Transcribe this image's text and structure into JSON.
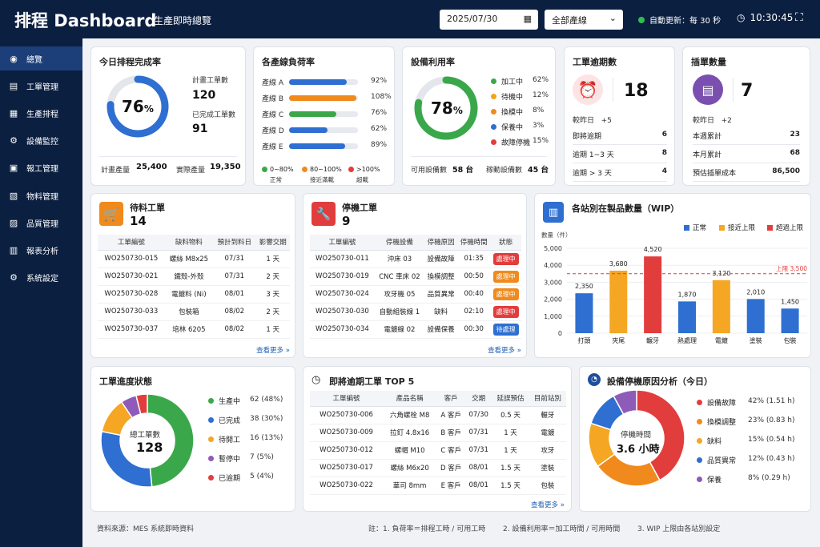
{
  "header": {
    "title": "排程 Dashboard",
    "subtitle": "生產即時總覽",
    "date": "2025/07/30",
    "line_select": "全部產線",
    "auto_refresh": "自動更新：每 30 秒",
    "time": "10:30:45"
  },
  "sidebar": {
    "items": [
      {
        "label": "總覽",
        "icon": "dashboard-icon",
        "glyph": "◉"
      },
      {
        "label": "工單管理",
        "icon": "document-icon",
        "glyph": "▤"
      },
      {
        "label": "生產排程",
        "icon": "calendar-icon",
        "glyph": "▦"
      },
      {
        "label": "設備監控",
        "icon": "equipment-icon",
        "glyph": "⚙"
      },
      {
        "label": "報工管理",
        "icon": "report-icon",
        "glyph": "▣"
      },
      {
        "label": "物料管理",
        "icon": "material-icon",
        "glyph": "▧"
      },
      {
        "label": "品質管理",
        "icon": "quality-icon",
        "glyph": "▨"
      },
      {
        "label": "報表分析",
        "icon": "chart-icon",
        "glyph": "▥"
      },
      {
        "label": "系統設定",
        "icon": "settings-icon",
        "glyph": "⚙"
      }
    ]
  },
  "completion": {
    "title": "今日排程完成率",
    "percent": "76",
    "percent_sign": "%",
    "value": 0.76,
    "planned_label": "計畫工單數",
    "planned": "120",
    "done_label": "已完成工單數",
    "done": "91",
    "plan_output_label": "計畫產量",
    "plan_output": "25,400",
    "actual_output_label": "實際產量",
    "actual_output": "19,350"
  },
  "line_load": {
    "title": "各產線負荷率",
    "lines": [
      {
        "name": "產線 A",
        "pct": "92%",
        "value": 92,
        "color": "#2e6fd1"
      },
      {
        "name": "產線 B",
        "pct": "108%",
        "value": 108,
        "color": "#f08a1c"
      },
      {
        "name": "產線 C",
        "pct": "76%",
        "value": 76,
        "color": "#3aa84a"
      },
      {
        "name": "產線 D",
        "pct": "62%",
        "value": 62,
        "color": "#2e6fd1"
      },
      {
        "name": "產線 E",
        "pct": "89%",
        "value": 89,
        "color": "#2e6fd1"
      }
    ],
    "legend": [
      {
        "range": "0~80%",
        "label": "正常",
        "color": "#3aa84a"
      },
      {
        "range": "80~100%",
        "label": "接近滿載",
        "color": "#f08a1c"
      },
      {
        "range": ">100%",
        "label": "超載",
        "color": "#e23d3d"
      }
    ]
  },
  "utilization": {
    "title": "設備利用率",
    "percent": "78",
    "percent_sign": "%",
    "value": 0.78,
    "states": [
      {
        "label": "加工中",
        "pct": "62%",
        "color": "#3aa84a"
      },
      {
        "label": "待機中",
        "pct": "12%",
        "color": "#f0a51c"
      },
      {
        "label": "換模中",
        "pct": "8%",
        "color": "#f08a1c"
      },
      {
        "label": "保養中",
        "pct": "3%",
        "color": "#2e6fd1"
      },
      {
        "label": "故障停機",
        "pct": "15%",
        "color": "#e23d3d"
      }
    ],
    "available_label": "可用設備數",
    "available": "58 台",
    "running_label": "稼動設備數",
    "running": "45 台"
  },
  "overdue": {
    "title": "工單逾期數",
    "count": "18",
    "compare_label": "較昨日",
    "compare": "+5",
    "rows": [
      {
        "label": "即將逾期",
        "value": "6"
      },
      {
        "label": "逾期 1~3 天",
        "value": "8"
      },
      {
        "label": "逾期 > 3 天",
        "value": "4"
      }
    ]
  },
  "rush": {
    "title": "插單數量",
    "count": "7",
    "compare_label": "較昨日",
    "compare": "+2",
    "rows": [
      {
        "label": "本週累計",
        "value": "23"
      },
      {
        "label": "本月累計",
        "value": "68"
      },
      {
        "label": "預估插單成本",
        "value": "86,500"
      }
    ]
  },
  "material_wait": {
    "title": "待料工單",
    "count": "14",
    "headers": [
      "工單編號",
      "缺料物料",
      "預計到料日",
      "影響交期"
    ],
    "rows": [
      [
        "WO250730-015",
        "螺絲 M8x25",
        "07/31",
        "1 天"
      ],
      [
        "WO250730-021",
        "鐵殼-外殼",
        "07/31",
        "2 天"
      ],
      [
        "WO250730-028",
        "電鍍料 (Ni)",
        "08/01",
        "3 天"
      ],
      [
        "WO250730-033",
        "包裝箱",
        "08/02",
        "2 天"
      ],
      [
        "WO250730-037",
        "培林 6205",
        "08/02",
        "1 天"
      ]
    ],
    "more": "查看更多 »"
  },
  "stopped": {
    "title": "停機工單",
    "count": "9",
    "headers": [
      "工單編號",
      "停機設備",
      "停機原因",
      "停機時間",
      "狀態"
    ],
    "rows": [
      [
        "WO250730-011",
        "沖床 03",
        "設備故障",
        "01:35",
        "處理中",
        "#e23d3d"
      ],
      [
        "WO250730-019",
        "CNC 車床 02",
        "換模調整",
        "00:50",
        "處理中",
        "#f08a1c"
      ],
      [
        "WO250730-024",
        "攻牙機 05",
        "品質異常",
        "00:40",
        "處理中",
        "#f08a1c"
      ],
      [
        "WO250730-030",
        "自動組裝線 1",
        "缺料",
        "02:10",
        "處理中",
        "#e23d3d"
      ],
      [
        "WO250730-034",
        "電鍍線 02",
        "設備保養",
        "00:30",
        "待處理",
        "#2e6fd1"
      ]
    ],
    "more": "查看更多 »"
  },
  "wip": {
    "title": "各站別在製品數量（WIP）",
    "legend": [
      {
        "label": "正常",
        "color": "#2e6fd1"
      },
      {
        "label": "接近上限",
        "color": "#f5a623"
      },
      {
        "label": "超過上限",
        "color": "#e23d3d"
      }
    ],
    "limit_label": "上限 3,500"
  },
  "chart_data": {
    "type": "bar",
    "ylabel": "數量（件）",
    "ylim": [
      0,
      5000
    ],
    "yticks": [
      "0",
      "1,000",
      "2,000",
      "3,000",
      "4,000",
      "5,000"
    ],
    "categories": [
      "打頭",
      "夾尾",
      "輾牙",
      "熱處理",
      "電鍍",
      "塗裝",
      "包裝"
    ],
    "values": [
      2350,
      3680,
      4520,
      1870,
      3120,
      2010,
      1450
    ],
    "value_labels": [
      "2,350",
      "3,680",
      "4,520",
      "1,870",
      "3,120",
      "2,010",
      "1,450"
    ],
    "colors": [
      "#2e6fd1",
      "#f5a623",
      "#e23d3d",
      "#2e6fd1",
      "#f5a623",
      "#2e6fd1",
      "#2e6fd1"
    ],
    "limit": 3500
  },
  "progress": {
    "title": "工單進度狀態",
    "center_label": "總工單數",
    "total": "128",
    "states": [
      {
        "label": "生產中",
        "value": "62 (48%)",
        "n": 62,
        "color": "#3aa84a"
      },
      {
        "label": "已完成",
        "value": "38 (30%)",
        "n": 38,
        "color": "#2e6fd1"
      },
      {
        "label": "待開工",
        "value": "16 (13%)",
        "n": 16,
        "color": "#f5a623"
      },
      {
        "label": "暫停中",
        "value": "7 (5%)",
        "n": 7,
        "color": "#8e5bb8"
      },
      {
        "label": "已逾期",
        "value": "5 (4%)",
        "n": 5,
        "color": "#e23d3d"
      }
    ]
  },
  "top5": {
    "title": "即將逾期工單 TOP 5",
    "headers": [
      "工單編號",
      "產品名稱",
      "客戶",
      "交期",
      "延誤預估",
      "目前站別"
    ],
    "rows": [
      [
        "WO250730-006",
        "六角螺栓 M8",
        "A 客戶",
        "07/30",
        "0.5 天",
        "輾牙"
      ],
      [
        "WO250730-009",
        "拉釘 4.8x16",
        "B 客戶",
        "07/31",
        "1 天",
        "電鍍"
      ],
      [
        "WO250730-012",
        "螺帽 M10",
        "C 客戶",
        "07/31",
        "1 天",
        "攻牙"
      ],
      [
        "WO250730-017",
        "螺絲 M6x20",
        "D 客戶",
        "08/01",
        "1.5 天",
        "塗裝"
      ],
      [
        "WO250730-022",
        "華司 8mm",
        "E 客戶",
        "08/01",
        "1.5 天",
        "包裝"
      ]
    ],
    "more": "查看更多 »"
  },
  "downtime": {
    "title": "設備停機原因分析（今日）",
    "center_label": "停機時間",
    "center_value": "3.6 小時",
    "reasons": [
      {
        "label": "設備故障",
        "value": "42% (1.51 h)",
        "n": 42,
        "color": "#e23d3d"
      },
      {
        "label": "換模調整",
        "value": "23% (0.83 h)",
        "n": 23,
        "color": "#f08a1c"
      },
      {
        "label": "缺料",
        "value": "15% (0.54 h)",
        "n": 15,
        "color": "#f5a623"
      },
      {
        "label": "品質異常",
        "value": "12% (0.43 h)",
        "n": 12,
        "color": "#2e6fd1"
      },
      {
        "label": "保養",
        "value": "8% (0.29 h)",
        "n": 8,
        "color": "#8e5bb8"
      }
    ]
  },
  "footer": {
    "source": "資料來源：MES 系統即時資料",
    "note1": "註：1. 負荷率＝排程工時 / 可用工時",
    "note2": "2. 設備利用率＝加工時間 / 可用時間",
    "note3": "3. WIP 上限由各站別設定"
  }
}
